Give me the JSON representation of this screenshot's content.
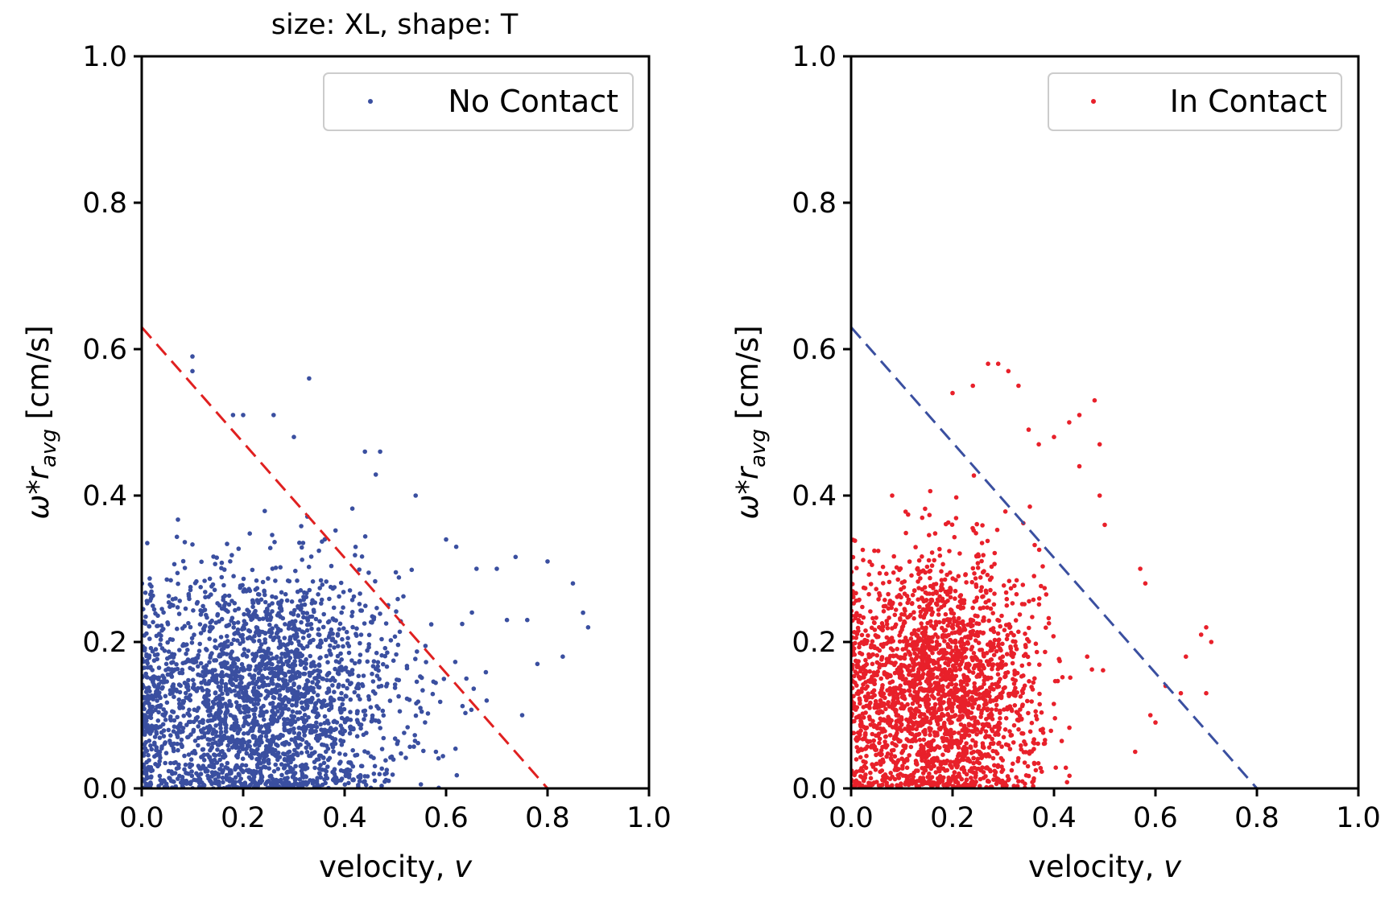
{
  "figure_title": "size: XL,  shape: T",
  "chart_data": [
    {
      "type": "scatter",
      "title": "size: XL,  shape: T",
      "xlabel": "velocity, ",
      "xlabel_var": "v",
      "ylabel_sym": "ω",
      "ylabel_star": "*",
      "ylabel_r": "r",
      "ylabel_sub": "avg",
      "ylabel_unit": " [cm/s]",
      "xlim": [
        0.0,
        1.0
      ],
      "ylim": [
        0.0,
        1.0
      ],
      "x_ticks": [
        "0.0",
        "0.2",
        "0.4",
        "0.6",
        "0.8",
        "1.0"
      ],
      "y_ticks": [
        "0.0",
        "0.2",
        "0.4",
        "0.6",
        "0.8",
        "1.0"
      ],
      "grid": false,
      "legend_position": "top-right",
      "series": [
        {
          "name": "No Contact",
          "color": "#3a4fa0",
          "marker": "dot",
          "cloud": {
            "center": [
              0.23,
              0.12
            ],
            "spread": [
              0.14,
              0.09
            ],
            "count": 2600
          },
          "x": [
            0.1,
            0.1,
            0.33,
            0.18,
            0.2,
            0.26,
            0.3,
            0.44,
            0.47,
            0.54,
            0.6,
            0.62,
            0.66,
            0.7,
            0.72,
            0.76,
            0.8,
            0.85,
            0.88,
            0.87,
            0.83,
            0.78,
            0.75,
            0.58,
            0.64,
            0.68
          ],
          "y": [
            0.59,
            0.57,
            0.56,
            0.51,
            0.51,
            0.51,
            0.48,
            0.46,
            0.46,
            0.4,
            0.34,
            0.33,
            0.3,
            0.3,
            0.23,
            0.23,
            0.31,
            0.28,
            0.22,
            0.24,
            0.18,
            0.17,
            0.1,
            0.05,
            0.15,
            0.12
          ]
        }
      ],
      "reference_line": {
        "style": "dashed",
        "color": "#e02020",
        "x": [
          0.0,
          0.8
        ],
        "y": [
          0.63,
          0.0
        ]
      }
    },
    {
      "type": "scatter",
      "title": "",
      "xlabel": "velocity, ",
      "xlabel_var": "v",
      "ylabel_sym": "ω",
      "ylabel_star": "*",
      "ylabel_r": "r",
      "ylabel_sub": "avg",
      "ylabel_unit": " [cm/s]",
      "xlim": [
        0.0,
        1.0
      ],
      "ylim": [
        0.0,
        1.0
      ],
      "x_ticks": [
        "0.0",
        "0.2",
        "0.4",
        "0.6",
        "0.8",
        "1.0"
      ],
      "y_ticks": [
        "0.0",
        "0.2",
        "0.4",
        "0.6",
        "0.8",
        "1.0"
      ],
      "grid": false,
      "legend_position": "top-right",
      "series": [
        {
          "name": "In Contact",
          "color": "#e8202a",
          "marker": "dot",
          "cloud": {
            "center": [
              0.17,
              0.13
            ],
            "spread": [
              0.1,
              0.09
            ],
            "count": 2400
          },
          "x": [
            0.2,
            0.24,
            0.27,
            0.29,
            0.31,
            0.33,
            0.35,
            0.37,
            0.4,
            0.43,
            0.45,
            0.48,
            0.49,
            0.49,
            0.5,
            0.45,
            0.57,
            0.58,
            0.6,
            0.62,
            0.66,
            0.69,
            0.7,
            0.71,
            0.7,
            0.65,
            0.56,
            0.59
          ],
          "y": [
            0.54,
            0.55,
            0.58,
            0.58,
            0.57,
            0.55,
            0.49,
            0.47,
            0.48,
            0.5,
            0.51,
            0.53,
            0.47,
            0.4,
            0.36,
            0.44,
            0.3,
            0.28,
            0.09,
            0.14,
            0.18,
            0.21,
            0.22,
            0.2,
            0.13,
            0.13,
            0.05,
            0.1
          ]
        }
      ],
      "reference_line": {
        "style": "dashed",
        "color": "#3a4fa0",
        "x": [
          0.0,
          0.8
        ],
        "y": [
          0.63,
          0.0
        ]
      }
    }
  ]
}
